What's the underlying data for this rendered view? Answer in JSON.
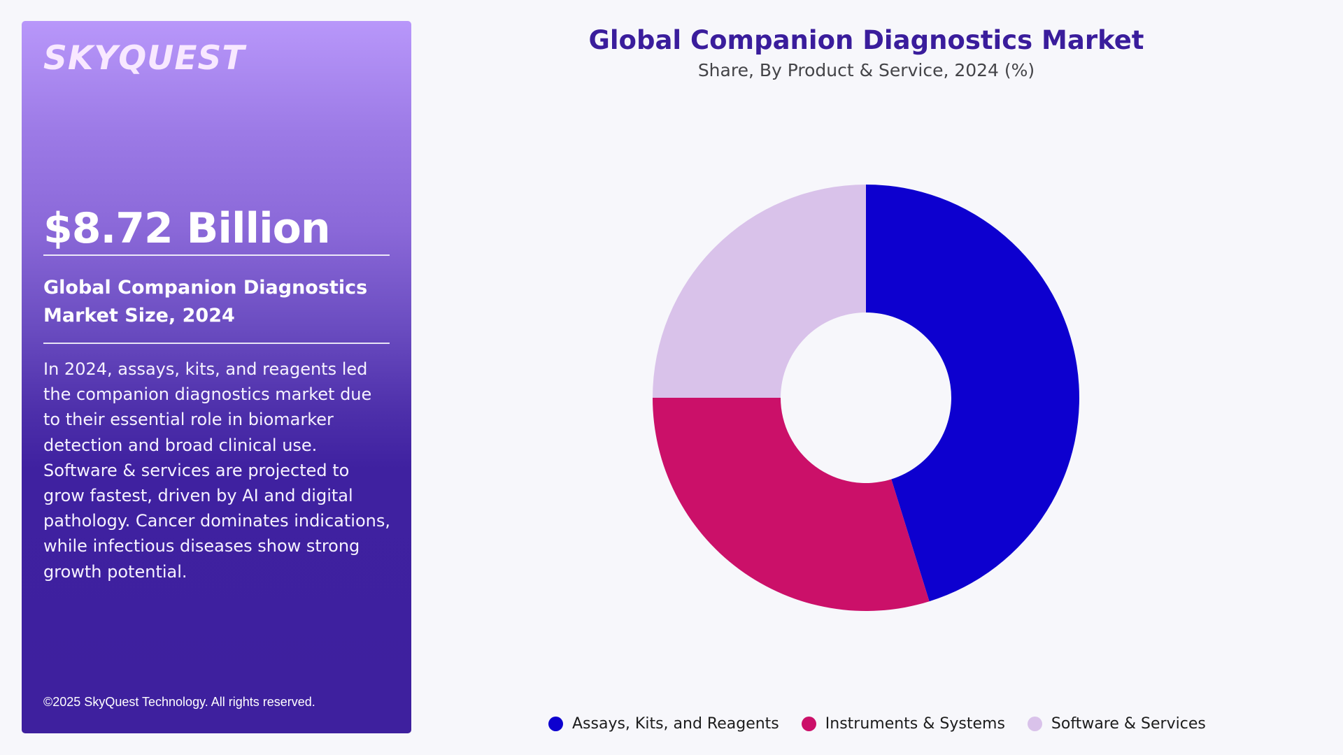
{
  "brand": {
    "logo": "SKYQUEST"
  },
  "panel": {
    "market_value": "$8.72 Billion",
    "market_label": "Global Companion Diagnostics Market Size, 2024",
    "description": "In 2024, assays, kits, and reagents led the companion diagnostics market due to their essential role in biomarker detection and broad clinical use. Software & services are projected to grow fastest, driven by AI and digital pathology. Cancer dominates indications, while infectious diseases show strong growth potential.",
    "copyright": "©2025 SkyQuest Technology. All rights reserved."
  },
  "chart": {
    "title": "Global Companion Diagnostics Market",
    "subtitle": "Share, By Product & Service, 2024 (%)"
  },
  "legend": [
    {
      "label": "Assays, Kits, and Reagents",
      "color": "#0D00CF"
    },
    {
      "label": "Instruments & Systems",
      "color": "#CB1069"
    },
    {
      "label": "Software & Services",
      "color": "#D9C2EA"
    }
  ],
  "chart_data": {
    "type": "pie",
    "variant": "donut",
    "title": "Global Companion Diagnostics Market",
    "subtitle": "Share, By Product & Service, 2024 (%)",
    "categories": [
      "Assays, Kits, and Reagents",
      "Instruments & Systems",
      "Software & Services"
    ],
    "values": [
      45.2,
      29.8,
      25.0
    ],
    "colors": [
      "#0D00CF",
      "#CB1069",
      "#D9C2EA"
    ],
    "start_angle_deg": 0,
    "direction": "clockwise",
    "inner_radius_ratio": 0.4,
    "legend_position": "bottom",
    "data_labels": false
  }
}
